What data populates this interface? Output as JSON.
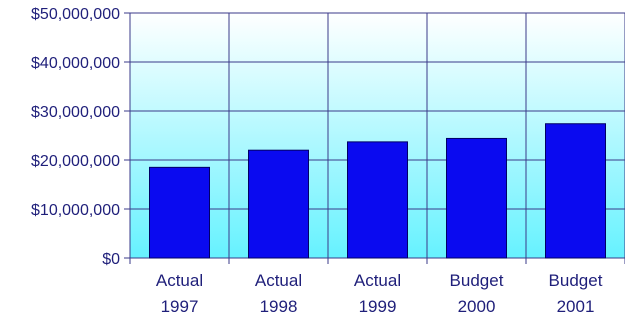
{
  "chart_data": {
    "type": "bar",
    "categories": [
      [
        "Actual",
        "1997"
      ],
      [
        "Actual",
        "1998"
      ],
      [
        "Actual",
        "1999"
      ],
      [
        "Budget",
        "2000"
      ],
      [
        "Budget",
        "2001"
      ]
    ],
    "values": [
      18500000,
      22000000,
      23700000,
      24400000,
      27400000
    ],
    "ylim": [
      0,
      50000000
    ],
    "y_ticks": [
      0,
      10000000,
      20000000,
      30000000,
      40000000,
      50000000
    ],
    "y_tick_labels": [
      "$0",
      "$10,000,000",
      "$20,000,000",
      "$30,000,000",
      "$40,000,000",
      "$50,000,000"
    ],
    "title": "",
    "xlabel": "",
    "ylabel": "",
    "grid": true,
    "legend": "none",
    "colors": {
      "bar_fill": "#0a0af0",
      "bar_stroke": "#000066",
      "grid": "#3a3a8a",
      "background_top": "#ffffff",
      "background_bottom": "#66f2ff",
      "text": "#1f1f7a"
    }
  }
}
